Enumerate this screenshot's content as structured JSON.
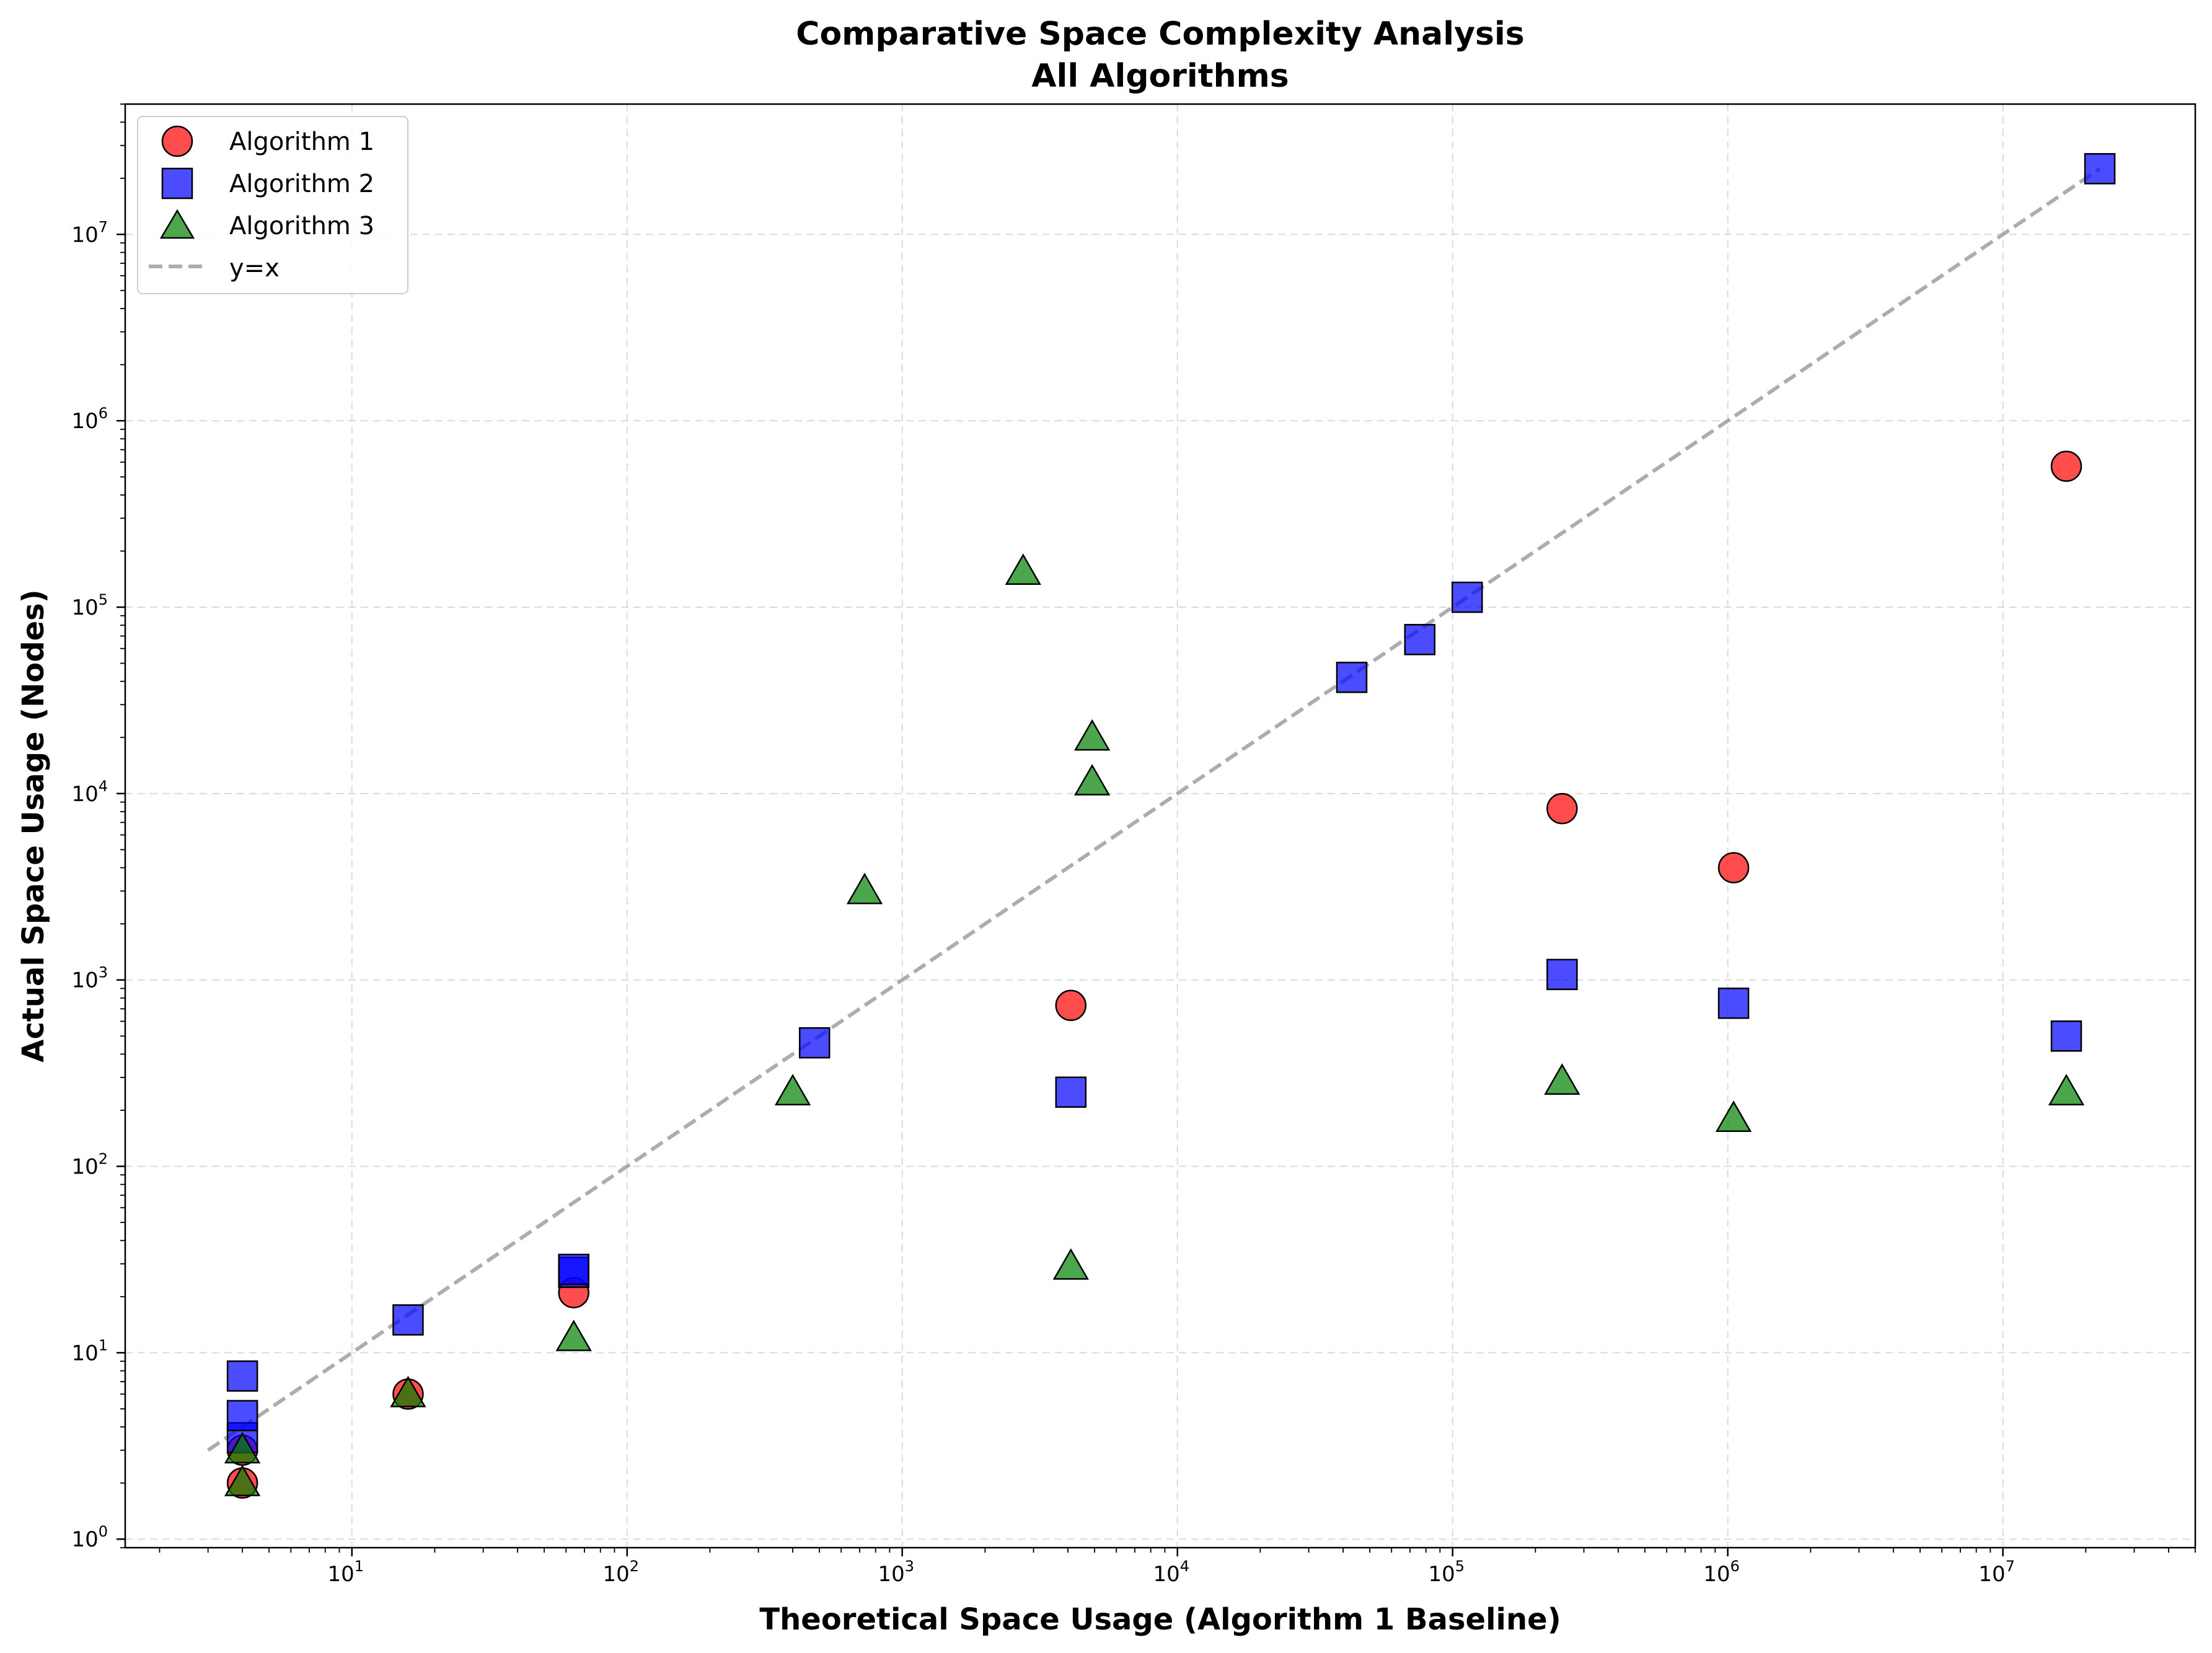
{
  "chart_data": {
    "type": "scatter",
    "title": "Comparative Space Complexity Analysis",
    "subtitle": "All Algorithms",
    "xlabel": "Theoretical Space Usage (Algorithm 1 Baseline)",
    "ylabel": "Actual Space Usage (Nodes)",
    "xscale": "log",
    "yscale": "log",
    "xlim": [
      1.5,
      50000000
    ],
    "ylim": [
      0.9,
      50000000
    ],
    "x_ticks": [
      {
        "value": 10,
        "label": "10",
        "exp": "1"
      },
      {
        "value": 100,
        "label": "10",
        "exp": "2"
      },
      {
        "value": 1000,
        "label": "10",
        "exp": "3"
      },
      {
        "value": 10000,
        "label": "10",
        "exp": "4"
      },
      {
        "value": 100000,
        "label": "10",
        "exp": "5"
      },
      {
        "value": 1000000,
        "label": "10",
        "exp": "6"
      },
      {
        "value": 10000000,
        "label": "10",
        "exp": "7"
      }
    ],
    "y_ticks": [
      {
        "value": 1,
        "label": "10",
        "exp": "0"
      },
      {
        "value": 10,
        "label": "10",
        "exp": "1"
      },
      {
        "value": 100,
        "label": "10",
        "exp": "2"
      },
      {
        "value": 1000,
        "label": "10",
        "exp": "3"
      },
      {
        "value": 10000,
        "label": "10",
        "exp": "4"
      },
      {
        "value": 100000,
        "label": "10",
        "exp": "5"
      },
      {
        "value": 1000000,
        "label": "10",
        "exp": "6"
      },
      {
        "value": 10000000,
        "label": "10",
        "exp": "7"
      }
    ],
    "grid": true,
    "legend_position": "top-left",
    "series": [
      {
        "name": "Algorithm 1",
        "marker": "circle",
        "color": "#ff0000",
        "points": [
          {
            "x": 4,
            "y": 2
          },
          {
            "x": 4,
            "y": 3
          },
          {
            "x": 16,
            "y": 6
          },
          {
            "x": 64,
            "y": 21
          },
          {
            "x": 4100,
            "y": 730
          },
          {
            "x": 250000,
            "y": 8300
          },
          {
            "x": 1050000,
            "y": 4000
          },
          {
            "x": 17000000,
            "y": 570000
          }
        ]
      },
      {
        "name": "Algorithm 2",
        "marker": "square",
        "color": "#0000ff",
        "points": [
          {
            "x": 4,
            "y": 3.5
          },
          {
            "x": 4,
            "y": 4.6
          },
          {
            "x": 4,
            "y": 7.5
          },
          {
            "x": 16,
            "y": 15
          },
          {
            "x": 64,
            "y": 27
          },
          {
            "x": 64,
            "y": 28
          },
          {
            "x": 480,
            "y": 460
          },
          {
            "x": 4100,
            "y": 250
          },
          {
            "x": 43000,
            "y": 42000
          },
          {
            "x": 76000,
            "y": 67000
          },
          {
            "x": 113000,
            "y": 113000
          },
          {
            "x": 250000,
            "y": 1070
          },
          {
            "x": 1050000,
            "y": 750
          },
          {
            "x": 17000000,
            "y": 500
          },
          {
            "x": 22500000,
            "y": 22500000
          }
        ]
      },
      {
        "name": "Algorithm 3",
        "marker": "triangle",
        "color": "#008000",
        "points": [
          {
            "x": 4,
            "y": 2
          },
          {
            "x": 4,
            "y": 3
          },
          {
            "x": 16,
            "y": 6
          },
          {
            "x": 64,
            "y": 12
          },
          {
            "x": 400,
            "y": 250
          },
          {
            "x": 730,
            "y": 3000
          },
          {
            "x": 2750,
            "y": 155000
          },
          {
            "x": 4100,
            "y": 29
          },
          {
            "x": 4900,
            "y": 11500
          },
          {
            "x": 4900,
            "y": 20000
          },
          {
            "x": 250000,
            "y": 285
          },
          {
            "x": 1050000,
            "y": 180
          },
          {
            "x": 17000000,
            "y": 250
          }
        ]
      }
    ],
    "reference_line": {
      "name": "y=x",
      "x": [
        3,
        22500000
      ],
      "y": [
        3,
        22500000
      ],
      "color": "#999999",
      "style": "dashed"
    }
  }
}
